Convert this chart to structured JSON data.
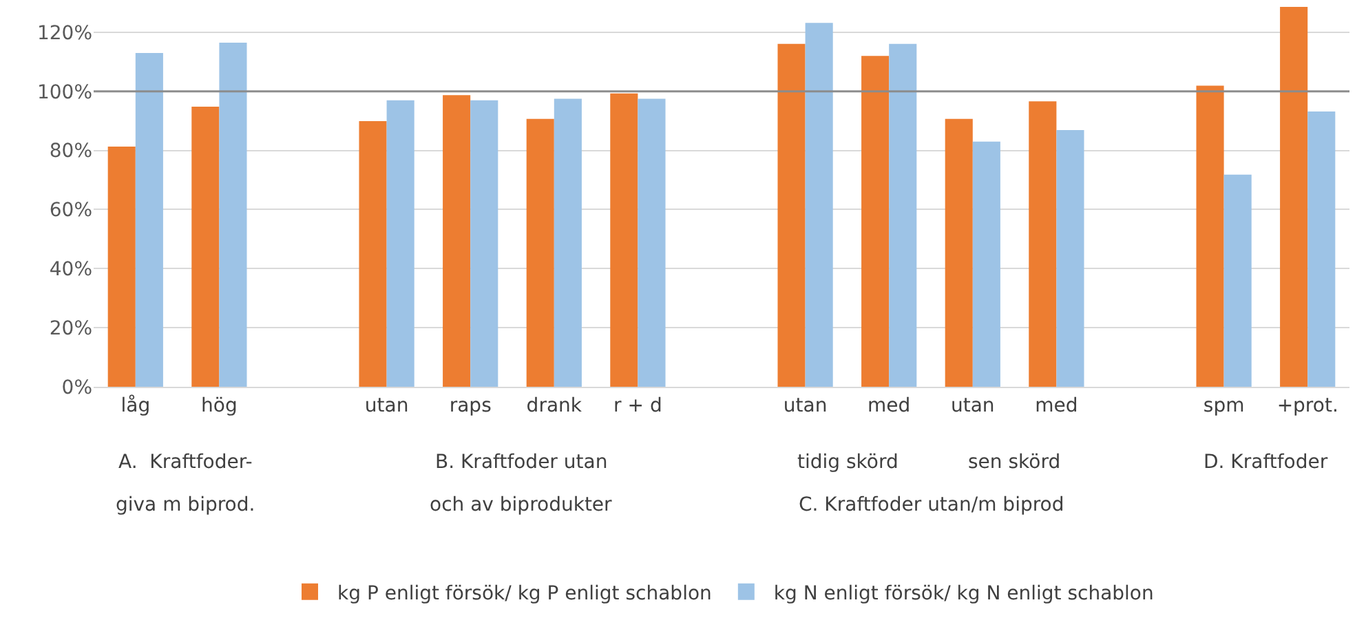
{
  "chart_data": {
    "type": "bar",
    "categories": [
      "låg",
      "hög",
      null,
      "utan",
      "raps",
      "drank",
      "r + d",
      null,
      "utan",
      "med",
      "utan",
      "med",
      null,
      "spm",
      "+prot."
    ],
    "series": [
      {
        "name": "kg P enligt försök/ kg P enligt schablon",
        "color": "#ed7d31",
        "values": [
          81.3,
          94.8,
          null,
          89.9,
          98.7,
          90.7,
          99.3,
          null,
          116.1,
          112.0,
          90.7,
          96.6,
          null,
          101.9,
          128.6
        ]
      },
      {
        "name": "kg N enligt försök/ kg N enligt schablon",
        "color": "#9dc3e6",
        "values": [
          113.0,
          116.5,
          null,
          97.0,
          97.0,
          97.5,
          97.5,
          null,
          123.2,
          116.1,
          83.0,
          86.9,
          null,
          71.8,
          93.2
        ]
      }
    ],
    "ylim": [
      0,
      130
    ],
    "yticks": [
      {
        "value": 0,
        "label": "0%"
      },
      {
        "value": 20,
        "label": "20%"
      },
      {
        "value": 40,
        "label": "40%"
      },
      {
        "value": 60,
        "label": "60%"
      },
      {
        "value": 80,
        "label": "80%"
      },
      {
        "value": 100,
        "label": "100%"
      },
      {
        "value": 120,
        "label": "120%"
      }
    ],
    "grid": "y",
    "legend": "bottom",
    "ref_lines": [
      {
        "axis": "y",
        "value": 100,
        "color": "#8c8c8c"
      }
    ],
    "annotations": [
      "A.  Kraftfoder-",
      "giva m biprod.",
      "B. Kraftfoder utan",
      "och av biprodukter",
      "tidig skörd",
      "sen skörd",
      "C. Kraftfoder utan/m biprod",
      "D. Kraftfoder"
    ]
  }
}
